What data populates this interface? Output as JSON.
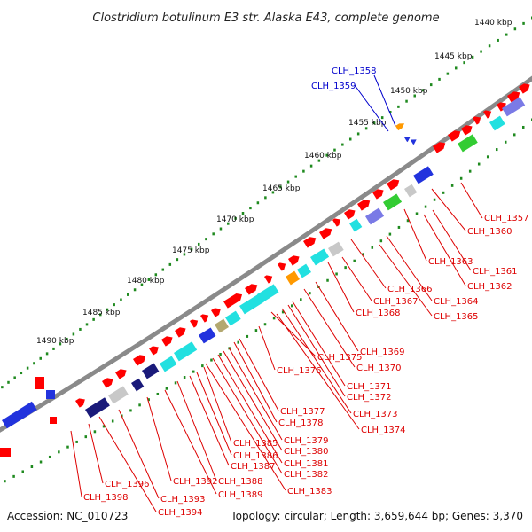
{
  "title": "Clostridium botulinum E3 str. Alaska E43, complete genome",
  "footer": {
    "accession": "Accession: NC_010723",
    "summary": "Topology: circular; Length: 3,659,644 bp; Genes: 3,370"
  },
  "colors": {
    "backbone": "#8a8a8a",
    "tick_dots": "#1f8a1f",
    "label_red": "#dd0000",
    "label_blue": "#0000cc",
    "gene_red": "#ff0000",
    "gene_blue": "#2233dd",
    "gene_navy": "#1a1a7a",
    "gene_cyan": "#22e0e0",
    "gene_lightblue": "#7a7ae6",
    "gene_gray": "#c8c8c8",
    "gene_olive": "#b3a870",
    "gene_orange": "#ff9900",
    "gene_green": "#33cc33"
  },
  "ticks": [
    {
      "label": "1440 kbp",
      "kbp": 1440
    },
    {
      "label": "1445 kbp",
      "kbp": 1445
    },
    {
      "label": "1450 kbp",
      "kbp": 1450
    },
    {
      "label": "1455 kbp",
      "kbp": 1455
    },
    {
      "label": "1460 kbp",
      "kbp": 1460
    },
    {
      "label": "1465 kbp",
      "kbp": 1465
    },
    {
      "label": "1470 kbp",
      "kbp": 1470
    },
    {
      "label": "1475 kbp",
      "kbp": 1475
    },
    {
      "label": "1480 kbp",
      "kbp": 1480
    },
    {
      "label": "1485 kbp",
      "kbp": 1485
    },
    {
      "label": "1490 kbp",
      "kbp": 1490
    }
  ],
  "gene_labels": [
    {
      "name": "CLH_1358",
      "color": "blue"
    },
    {
      "name": "CLH_1359",
      "color": "blue"
    },
    {
      "name": "CLH_1357",
      "color": "red"
    },
    {
      "name": "CLH_1360",
      "color": "red"
    },
    {
      "name": "CLH_1361",
      "color": "red"
    },
    {
      "name": "CLH_1362",
      "color": "red"
    },
    {
      "name": "CLH_1363",
      "color": "red"
    },
    {
      "name": "CLH_1364",
      "color": "red"
    },
    {
      "name": "CLH_1365",
      "color": "red"
    },
    {
      "name": "CLH_1366",
      "color": "red"
    },
    {
      "name": "CLH_1367",
      "color": "red"
    },
    {
      "name": "CLH_1368",
      "color": "red"
    },
    {
      "name": "CLH_1369",
      "color": "red"
    },
    {
      "name": "CLH_1370",
      "color": "red"
    },
    {
      "name": "CLH_1371",
      "color": "red"
    },
    {
      "name": "CLH_1372",
      "color": "red"
    },
    {
      "name": "CLH_1373",
      "color": "red"
    },
    {
      "name": "CLH_1374",
      "color": "red"
    },
    {
      "name": "CLH_1375",
      "color": "red"
    },
    {
      "name": "CLH_1376",
      "color": "red"
    },
    {
      "name": "CLH_1377",
      "color": "red"
    },
    {
      "name": "CLH_1378",
      "color": "red"
    },
    {
      "name": "CLH_1379",
      "color": "red"
    },
    {
      "name": "CLH_1380",
      "color": "red"
    },
    {
      "name": "CLH_1381",
      "color": "red"
    },
    {
      "name": "CLH_1382",
      "color": "red"
    },
    {
      "name": "CLH_1383",
      "color": "red"
    },
    {
      "name": "CLH_1385",
      "color": "red"
    },
    {
      "name": "CLH_1386",
      "color": "red"
    },
    {
      "name": "CLH_1387",
      "color": "red"
    },
    {
      "name": "CLH_1388",
      "color": "red"
    },
    {
      "name": "CLH_1389",
      "color": "red"
    },
    {
      "name": "CLH_1392",
      "color": "red"
    },
    {
      "name": "CLH_1393",
      "color": "red"
    },
    {
      "name": "CLH_1394",
      "color": "red"
    },
    {
      "name": "CLH_1396",
      "color": "red"
    },
    {
      "name": "CLH_1398",
      "color": "red"
    }
  ]
}
